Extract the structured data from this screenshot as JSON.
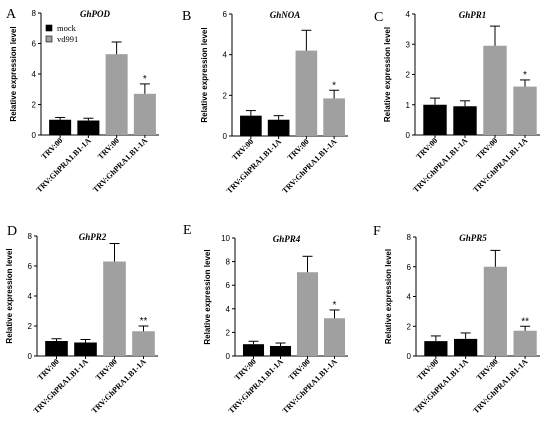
{
  "legend": {
    "items": [
      {
        "label": "mock",
        "color": "#000000"
      },
      {
        "label": "vd991",
        "color": "#a0a0a0"
      }
    ]
  },
  "colors": {
    "mock": "#000000",
    "vd991": "#a0a0a0"
  },
  "chart_data": [
    {
      "panel": "A",
      "title": "GhPOD",
      "type": "bar",
      "ylabel": "Relative expression level",
      "ylim": [
        0,
        8
      ],
      "yticks": [
        0,
        2,
        4,
        6,
        8
      ],
      "categories": [
        "TRV:00",
        "TRV:GhPRA1.B1-1A",
        "TRV:00",
        "TRV:GhPRA1.B1-1A"
      ],
      "groups": [
        "mock",
        "mock",
        "vd991",
        "vd991"
      ],
      "values": [
        1.0,
        0.95,
        5.3,
        2.7
      ],
      "errors": [
        0.15,
        0.15,
        0.8,
        0.65
      ],
      "significance": [
        "",
        "",
        "",
        "*"
      ]
    },
    {
      "panel": "B",
      "title": "GhNOA",
      "type": "bar",
      "ylabel": "Relative expression level",
      "ylim": [
        0,
        6
      ],
      "yticks": [
        0,
        2,
        4,
        6
      ],
      "categories": [
        "TRV:00",
        "TRV:GhPRA1.B1-1A",
        "TRV:00",
        "TRV:GhPRA1.B1-1A"
      ],
      "groups": [
        "mock",
        "mock",
        "vd991",
        "vd991"
      ],
      "values": [
        1.0,
        0.8,
        4.2,
        1.85
      ],
      "errors": [
        0.25,
        0.2,
        1.0,
        0.4
      ],
      "significance": [
        "",
        "",
        "",
        "*"
      ]
    },
    {
      "panel": "C",
      "title": "GhPR1",
      "type": "bar",
      "ylabel": "Relative expression level",
      "ylim": [
        0,
        4
      ],
      "yticks": [
        0,
        1,
        2,
        3,
        4
      ],
      "categories": [
        "TRV:00",
        "TRV:GhPRA1.B1-1A",
        "TRV:00",
        "TRV:GhPRA1.B1-1A"
      ],
      "groups": [
        "mock",
        "mock",
        "vd991",
        "vd991"
      ],
      "values": [
        1.0,
        0.95,
        2.95,
        1.6
      ],
      "errors": [
        0.22,
        0.18,
        0.65,
        0.22
      ],
      "significance": [
        "",
        "",
        "",
        "*"
      ]
    },
    {
      "panel": "D",
      "title": "GhPR2",
      "type": "bar",
      "ylabel": "Relative expression level",
      "ylim": [
        0,
        8
      ],
      "yticks": [
        0,
        2,
        4,
        6,
        8
      ],
      "categories": [
        "TRV:00",
        "TRV:GhPRA1.B1-1A",
        "TRV:00",
        "TRV:GhPRA1.B1-1A"
      ],
      "groups": [
        "mock",
        "mock",
        "vd991",
        "vd991"
      ],
      "values": [
        1.0,
        0.9,
        6.3,
        1.65
      ],
      "errors": [
        0.15,
        0.2,
        1.2,
        0.35
      ],
      "significance": [
        "",
        "",
        "",
        "**"
      ]
    },
    {
      "panel": "E",
      "title": "GhPR4",
      "type": "bar",
      "ylabel": "Relative expression level",
      "ylim": [
        0,
        10
      ],
      "yticks": [
        0,
        2,
        4,
        6,
        8,
        10
      ],
      "categories": [
        "TRV:00",
        "TRV:GhPRA1.B1-1A",
        "TRV:00",
        "TRV:GhPRA1.B1-1A"
      ],
      "groups": [
        "mock",
        "mock",
        "vd991",
        "vd991"
      ],
      "values": [
        1.0,
        0.85,
        7.1,
        3.2
      ],
      "errors": [
        0.25,
        0.25,
        1.35,
        0.7
      ],
      "significance": [
        "",
        "",
        "",
        "*"
      ]
    },
    {
      "panel": "F",
      "title": "GhPR5",
      "type": "bar",
      "ylabel": "Relative expression level",
      "ylim": [
        0,
        8
      ],
      "yticks": [
        0,
        2,
        4,
        6,
        8
      ],
      "categories": [
        "TRV:00",
        "TRV:GhPRA1.B1-1A",
        "TRV:00",
        "TRV:GhPRA1.B1-1A"
      ],
      "groups": [
        "mock",
        "mock",
        "vd991",
        "vd991"
      ],
      "values": [
        1.0,
        1.15,
        6.0,
        1.7
      ],
      "errors": [
        0.35,
        0.4,
        1.1,
        0.3
      ],
      "significance": [
        "",
        "",
        "",
        "**"
      ]
    }
  ]
}
